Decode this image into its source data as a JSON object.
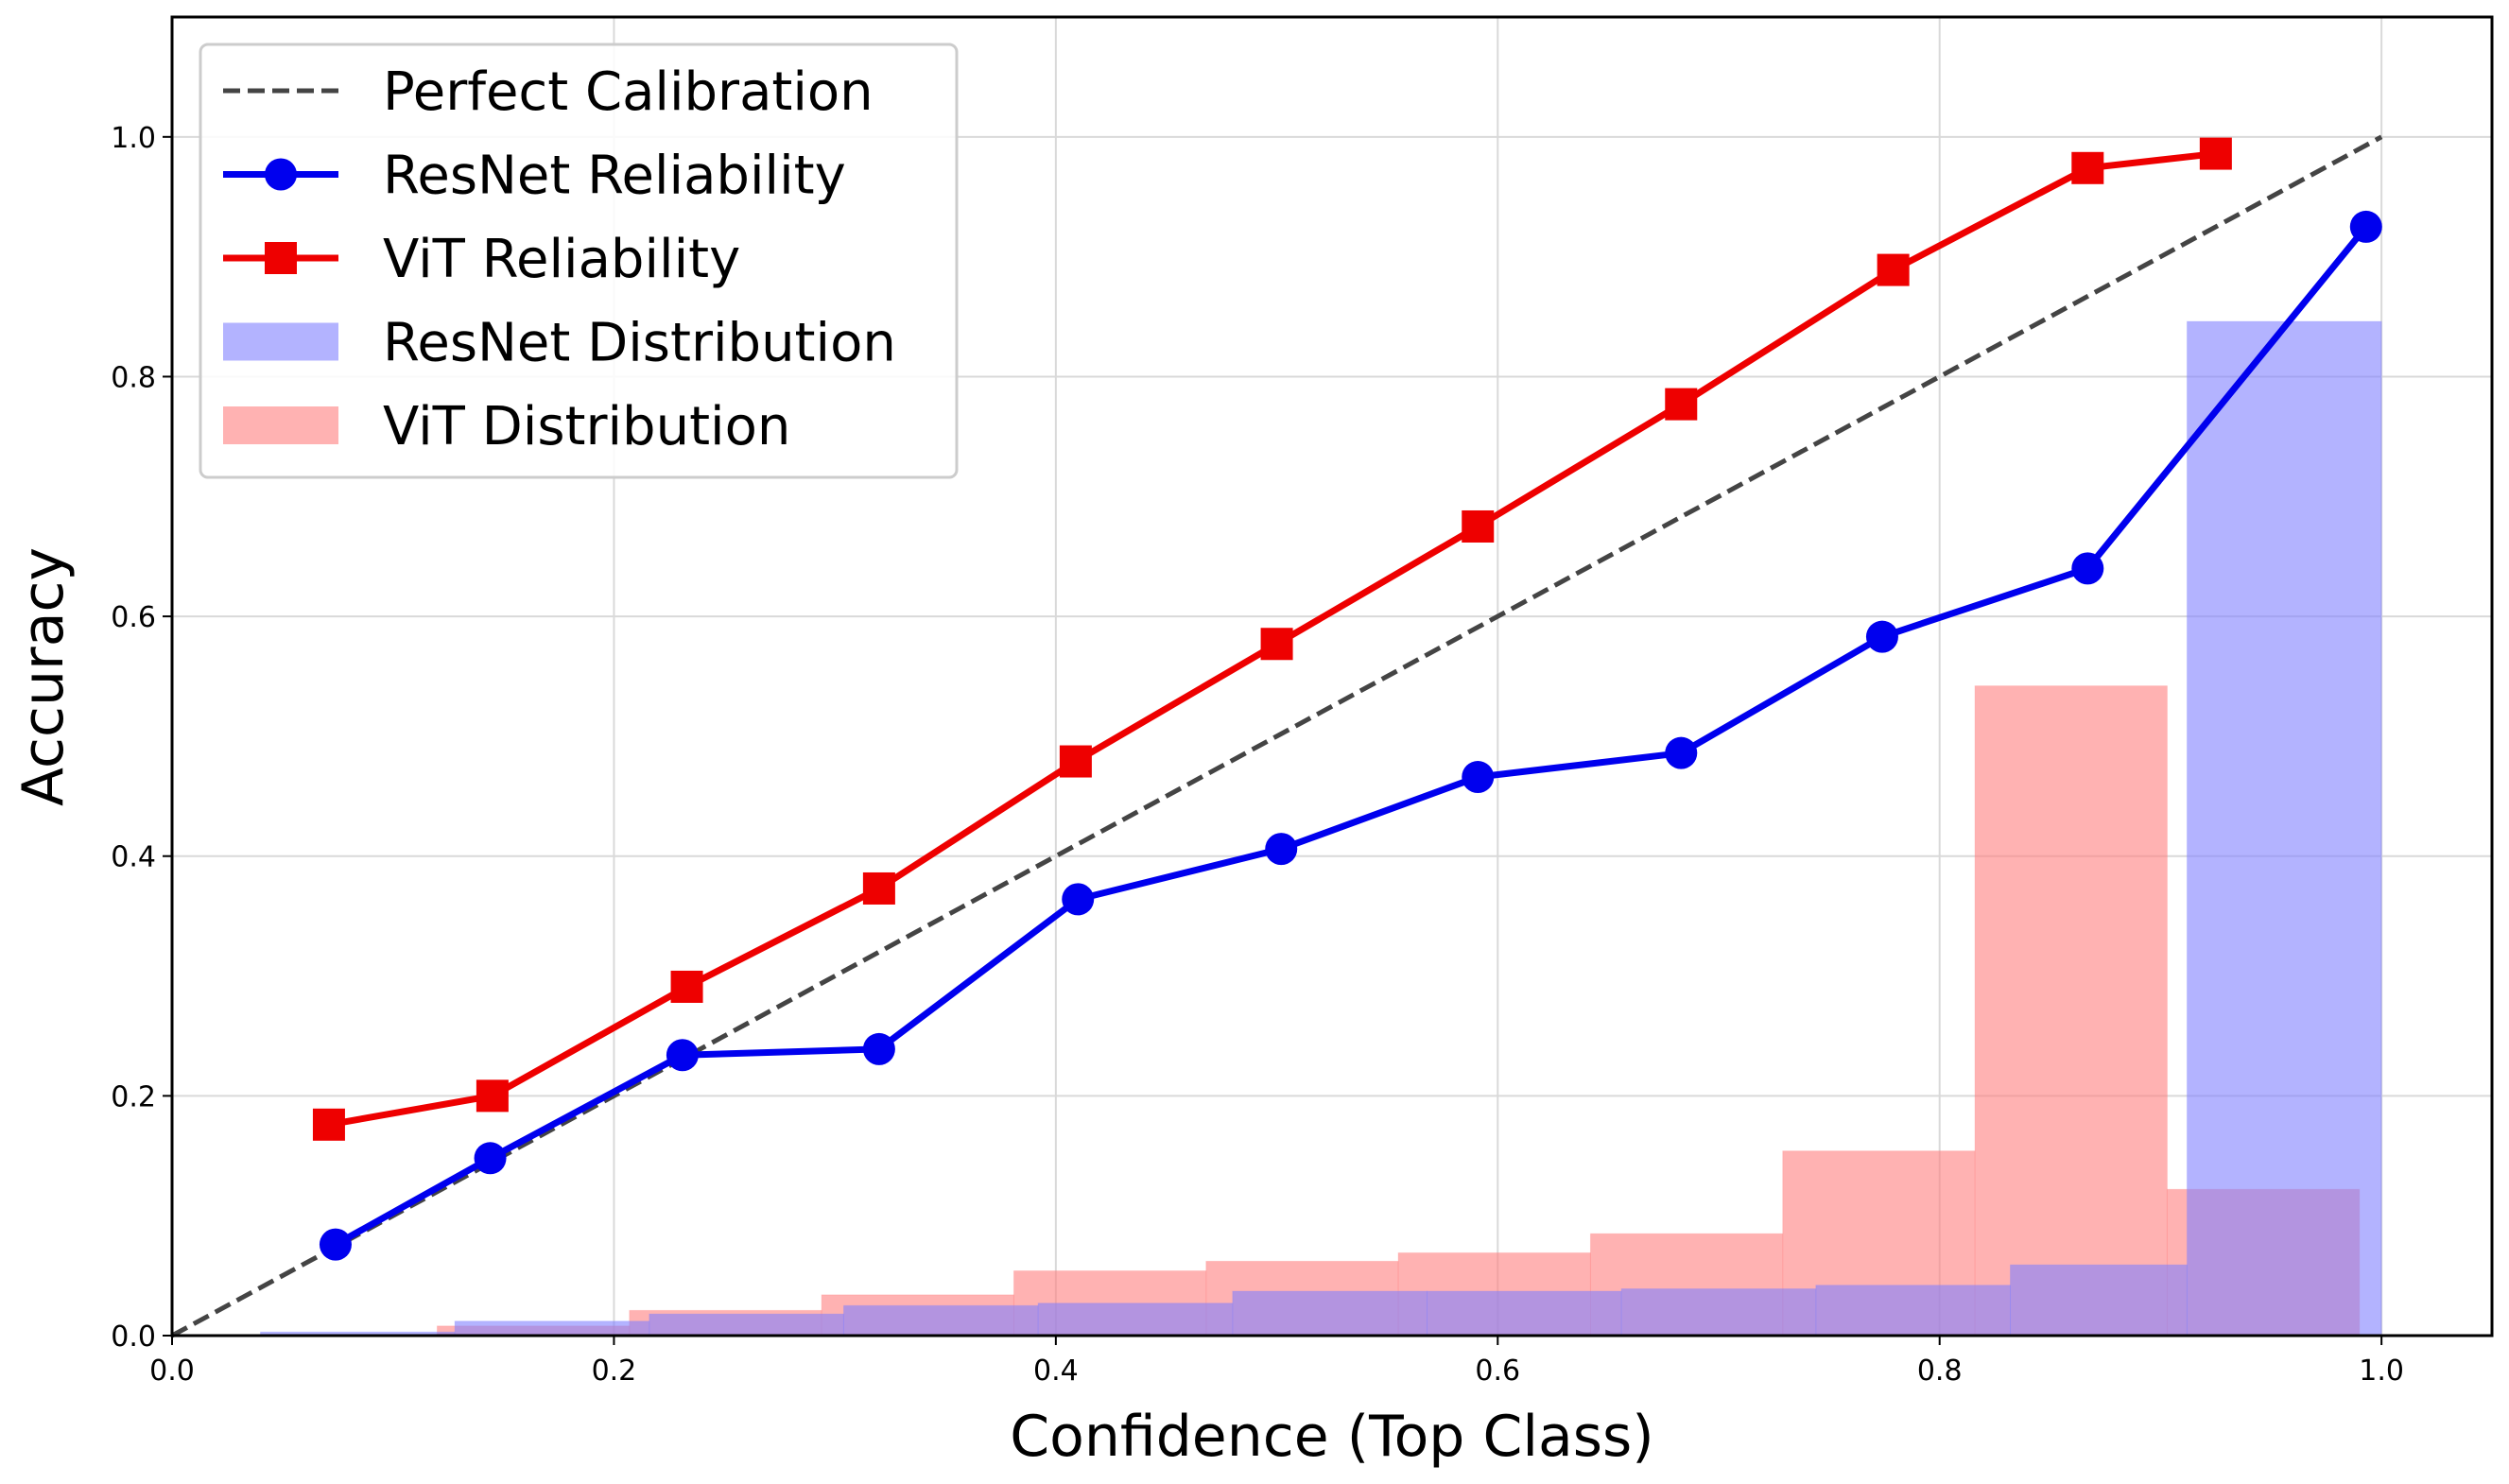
{
  "chart_data": {
    "type": "line",
    "xlabel": "Confidence (Top Class)",
    "ylabel": "Accuracy",
    "xlim": [
      0.0,
      1.05
    ],
    "ylim": [
      0.0,
      1.1
    ],
    "xticks": [
      "0.0",
      "0.2",
      "0.4",
      "0.6",
      "0.8",
      "1.0"
    ],
    "yticks": [
      "0.0",
      "0.2",
      "0.4",
      "0.6",
      "0.8",
      "1.0"
    ],
    "grid": true,
    "legend_position": "top-left",
    "perfect_calibration": {
      "name": "Perfect Calibration",
      "x": [
        0.0,
        1.0
      ],
      "y": [
        0.0,
        1.0
      ],
      "color": "#444444"
    },
    "series": [
      {
        "name": "ResNet Reliability",
        "color": "#0000ee",
        "marker": "circle",
        "x": [
          0.074,
          0.144,
          0.231,
          0.32,
          0.41,
          0.502,
          0.591,
          0.683,
          0.774,
          0.867,
          0.993
        ],
        "y": [
          0.076,
          0.148,
          0.234,
          0.239,
          0.364,
          0.406,
          0.466,
          0.486,
          0.583,
          0.64,
          0.925
        ]
      },
      {
        "name": "ViT Reliability",
        "color": "#ee0000",
        "marker": "square",
        "x": [
          0.071,
          0.145,
          0.233,
          0.32,
          0.409,
          0.5,
          0.591,
          0.683,
          0.779,
          0.867,
          0.925
        ],
        "y": [
          0.176,
          0.2,
          0.291,
          0.373,
          0.479,
          0.577,
          0.675,
          0.777,
          0.889,
          0.974,
          0.986
        ]
      }
    ],
    "distributions": [
      {
        "name": "ResNet Distribution",
        "color": "#8080ff",
        "bins": [
          {
            "x0": 0.04,
            "x1": 0.128,
            "h": 0.003
          },
          {
            "x0": 0.128,
            "x1": 0.216,
            "h": 0.012
          },
          {
            "x0": 0.216,
            "x1": 0.304,
            "h": 0.018
          },
          {
            "x0": 0.304,
            "x1": 0.392,
            "h": 0.025
          },
          {
            "x0": 0.392,
            "x1": 0.48,
            "h": 0.027
          },
          {
            "x0": 0.48,
            "x1": 0.568,
            "h": 0.037
          },
          {
            "x0": 0.568,
            "x1": 0.656,
            "h": 0.037
          },
          {
            "x0": 0.656,
            "x1": 0.744,
            "h": 0.039
          },
          {
            "x0": 0.744,
            "x1": 0.832,
            "h": 0.042
          },
          {
            "x0": 0.832,
            "x1": 0.912,
            "h": 0.059
          },
          {
            "x0": 0.912,
            "x1": 1.0,
            "h": 0.846
          }
        ]
      },
      {
        "name": "ViT Distribution",
        "color": "#ff7f7f",
        "bins": [
          {
            "x0": 0.12,
            "x1": 0.207,
            "h": 0.008
          },
          {
            "x0": 0.207,
            "x1": 0.294,
            "h": 0.021
          },
          {
            "x0": 0.294,
            "x1": 0.381,
            "h": 0.034
          },
          {
            "x0": 0.381,
            "x1": 0.468,
            "h": 0.054
          },
          {
            "x0": 0.468,
            "x1": 0.555,
            "h": 0.062
          },
          {
            "x0": 0.555,
            "x1": 0.642,
            "h": 0.069
          },
          {
            "x0": 0.642,
            "x1": 0.729,
            "h": 0.085
          },
          {
            "x0": 0.729,
            "x1": 0.816,
            "h": 0.154
          },
          {
            "x0": 0.816,
            "x1": 0.903,
            "h": 0.542
          },
          {
            "x0": 0.903,
            "x1": 0.99,
            "h": 0.122
          }
        ]
      }
    ]
  }
}
